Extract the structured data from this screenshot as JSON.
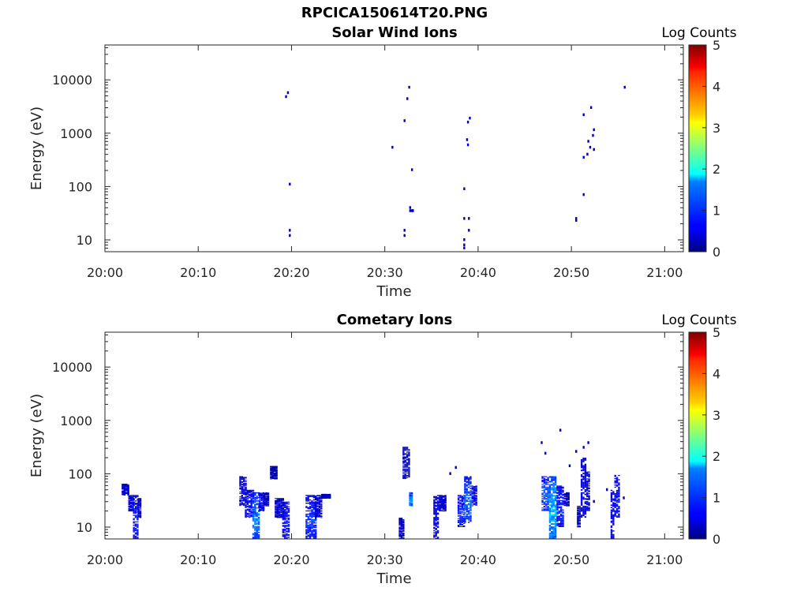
{
  "figure_title": "RPCICA150614T20.PNG",
  "chart_data": [
    {
      "type": "heatmap",
      "title": "Solar Wind Ions",
      "xlabel": "Time",
      "ylabel": "Energy (eV)",
      "yscale": "log",
      "xlim": [
        "20:00",
        "21:02"
      ],
      "ylim": [
        6,
        45000
      ],
      "xticks": [
        "20:00",
        "20:10",
        "20:20",
        "20:30",
        "20:40",
        "20:50",
        "21:00"
      ],
      "yticks": [
        "10",
        "100",
        "1000",
        "10000"
      ],
      "colorbar": {
        "label": "Log Counts",
        "min": 0,
        "max": 5,
        "ticks": [
          "0",
          "1",
          "2",
          "3",
          "4",
          "5"
        ],
        "colormap": "jet"
      },
      "points": [
        {
          "t": 19.4,
          "e": 4800,
          "v": 0.3
        },
        {
          "t": 19.6,
          "e": 5700,
          "v": 0.3
        },
        {
          "t": 19.8,
          "e": 110,
          "v": 0.3
        },
        {
          "t": 19.8,
          "e": 15,
          "v": 0.3
        },
        {
          "t": 19.8,
          "e": 12,
          "v": 0.3
        },
        {
          "t": 30.8,
          "e": 540,
          "v": 0.3
        },
        {
          "t": 32.1,
          "e": 1700,
          "v": 0.3
        },
        {
          "t": 32.1,
          "e": 15,
          "v": 0.3
        },
        {
          "t": 32.1,
          "e": 12,
          "v": 0.3
        },
        {
          "t": 32.4,
          "e": 4400,
          "v": 0.3
        },
        {
          "t": 32.6,
          "e": 7200,
          "v": 0.3
        },
        {
          "t": 32.7,
          "e": 40,
          "v": 0.4
        },
        {
          "t": 32.7,
          "e": 35,
          "v": 0.3
        },
        {
          "t": 32.9,
          "e": 35,
          "v": 0.3
        },
        {
          "t": 33.0,
          "e": 35,
          "v": 0.3
        },
        {
          "t": 32.9,
          "e": 205,
          "v": 0.3
        },
        {
          "t": 38.5,
          "e": 90,
          "v": 0.3
        },
        {
          "t": 38.5,
          "e": 25,
          "v": 0.3
        },
        {
          "t": 38.5,
          "e": 10,
          "v": 0.3
        },
        {
          "t": 38.5,
          "e": 8,
          "v": 0.3
        },
        {
          "t": 38.5,
          "e": 7,
          "v": 0.3
        },
        {
          "t": 38.8,
          "e": 750,
          "v": 0.3
        },
        {
          "t": 38.9,
          "e": 600,
          "v": 0.3
        },
        {
          "t": 38.9,
          "e": 1600,
          "v": 0.3
        },
        {
          "t": 39.1,
          "e": 1900,
          "v": 0.3
        },
        {
          "t": 39.0,
          "e": 25,
          "v": 0.3
        },
        {
          "t": 39.0,
          "e": 15,
          "v": 0.3
        },
        {
          "t": 50.5,
          "e": 25,
          "v": 0.3
        },
        {
          "t": 50.5,
          "e": 23,
          "v": 0.3
        },
        {
          "t": 51.3,
          "e": 2200,
          "v": 0.3
        },
        {
          "t": 51.3,
          "e": 70,
          "v": 0.3
        },
        {
          "t": 51.3,
          "e": 350,
          "v": 0.3
        },
        {
          "t": 51.7,
          "e": 400,
          "v": 0.3
        },
        {
          "t": 51.8,
          "e": 700,
          "v": 0.3
        },
        {
          "t": 52.0,
          "e": 540,
          "v": 0.3
        },
        {
          "t": 52.1,
          "e": 3000,
          "v": 0.3
        },
        {
          "t": 52.3,
          "e": 900,
          "v": 0.3
        },
        {
          "t": 52.4,
          "e": 1150,
          "v": 0.3
        },
        {
          "t": 52.4,
          "e": 490,
          "v": 0.3
        },
        {
          "t": 55.7,
          "e": 7200,
          "v": 0.3
        }
      ]
    },
    {
      "type": "heatmap",
      "title": "Cometary Ions",
      "xlabel": "Time",
      "ylabel": "Energy (eV)",
      "yscale": "log",
      "xlim": [
        "20:00",
        "21:02"
      ],
      "ylim": [
        6,
        45000
      ],
      "xticks": [
        "20:00",
        "20:10",
        "20:20",
        "20:30",
        "20:40",
        "20:50",
        "21:00"
      ],
      "yticks": [
        "10",
        "100",
        "1000",
        "10000"
      ],
      "colorbar": {
        "label": "Log Counts",
        "min": 0,
        "max": 5,
        "ticks": [
          "0",
          "1",
          "2",
          "3",
          "4",
          "5"
        ],
        "colormap": "jet"
      },
      "columns": [
        {
          "t0": 1.8,
          "t1": 2.5,
          "e_low": 40,
          "e_high": 65,
          "v_peak": 0.5
        },
        {
          "t0": 2.5,
          "t1": 3.0,
          "e_low": 20,
          "e_high": 40,
          "v_peak": 0.6
        },
        {
          "t0": 3.0,
          "t1": 3.5,
          "e_low": 6,
          "e_high": 40,
          "v_peak": 0.8
        },
        {
          "t0": 3.5,
          "t1": 3.8,
          "e_low": 15,
          "e_high": 35,
          "v_peak": 0.4
        },
        {
          "t0": 14.4,
          "t1": 15.0,
          "e_low": 25,
          "e_high": 90,
          "v_peak": 0.5
        },
        {
          "t0": 15.0,
          "t1": 15.8,
          "e_low": 15,
          "e_high": 50,
          "v_peak": 0.7
        },
        {
          "t0": 15.8,
          "t1": 16.5,
          "e_low": 6,
          "e_high": 45,
          "v_peak": 1.3
        },
        {
          "t0": 16.5,
          "t1": 17.0,
          "e_low": 20,
          "e_high": 45,
          "v_peak": 0.6
        },
        {
          "t0": 17.0,
          "t1": 17.5,
          "e_low": 25,
          "e_high": 45,
          "v_peak": 0.4
        },
        {
          "t0": 17.7,
          "t1": 18.3,
          "e_low": 80,
          "e_high": 140,
          "v_peak": 0.3
        },
        {
          "t0": 18.2,
          "t1": 19.0,
          "e_low": 15,
          "e_high": 35,
          "v_peak": 0.5
        },
        {
          "t0": 19.0,
          "t1": 19.6,
          "e_low": 6,
          "e_high": 30,
          "v_peak": 0.7
        },
        {
          "t0": 21.5,
          "t1": 22.5,
          "e_low": 6,
          "e_high": 40,
          "v_peak": 0.9
        },
        {
          "t0": 22.5,
          "t1": 23.2,
          "e_low": 15,
          "e_high": 40,
          "v_peak": 0.5
        },
        {
          "t0": 23.2,
          "t1": 24.0,
          "e_low": 35,
          "e_high": 42,
          "v_peak": 0.4
        },
        {
          "t0": 31.5,
          "t1": 32.0,
          "e_low": 6,
          "e_high": 15,
          "v_peak": 0.4
        },
        {
          "t0": 31.9,
          "t1": 32.6,
          "e_low": 80,
          "e_high": 320,
          "v_peak": 0.3
        },
        {
          "t0": 32.6,
          "t1": 33.0,
          "e_low": 25,
          "e_high": 45,
          "v_peak": 1.5
        },
        {
          "t0": 35.2,
          "t1": 35.8,
          "e_low": 6,
          "e_high": 40,
          "v_peak": 0.6
        },
        {
          "t0": 35.8,
          "t1": 36.6,
          "e_low": 20,
          "e_high": 40,
          "v_peak": 0.5
        },
        {
          "t0": 37.8,
          "t1": 38.5,
          "e_low": 10,
          "e_high": 40,
          "v_peak": 0.8
        },
        {
          "t0": 38.5,
          "t1": 39.3,
          "e_low": 12,
          "e_high": 90,
          "v_peak": 1.2
        },
        {
          "t0": 39.3,
          "t1": 39.8,
          "e_low": 25,
          "e_high": 60,
          "v_peak": 0.6
        },
        {
          "t0": 46.8,
          "t1": 47.6,
          "e_low": 20,
          "e_high": 90,
          "v_peak": 1.1
        },
        {
          "t0": 47.6,
          "t1": 48.4,
          "e_low": 6,
          "e_high": 90,
          "v_peak": 1.6
        },
        {
          "t0": 48.4,
          "t1": 49.2,
          "e_low": 10,
          "e_high": 60,
          "v_peak": 0.8
        },
        {
          "t0": 49.2,
          "t1": 49.8,
          "e_low": 25,
          "e_high": 45,
          "v_peak": 0.4
        },
        {
          "t0": 50.6,
          "t1": 51.0,
          "e_low": 10,
          "e_high": 25,
          "v_peak": 0.4
        },
        {
          "t0": 51.0,
          "t1": 51.6,
          "e_low": 15,
          "e_high": 200,
          "v_peak": 0.6
        },
        {
          "t0": 51.6,
          "t1": 52.0,
          "e_low": 20,
          "e_high": 110,
          "v_peak": 0.5
        },
        {
          "t0": 54.2,
          "t1": 54.6,
          "e_low": 6,
          "e_high": 50,
          "v_peak": 0.6
        },
        {
          "t0": 54.6,
          "t1": 55.2,
          "e_low": 15,
          "e_high": 95,
          "v_peak": 0.7
        }
      ],
      "points": [
        {
          "t": 46.8,
          "e": 380,
          "v": 0.3
        },
        {
          "t": 48.8,
          "e": 650,
          "v": 0.3
        },
        {
          "t": 50.5,
          "e": 260,
          "v": 0.3
        },
        {
          "t": 51.8,
          "e": 380,
          "v": 0.3
        },
        {
          "t": 47.2,
          "e": 240,
          "v": 0.3
        },
        {
          "t": 37.0,
          "e": 100,
          "v": 0.3
        },
        {
          "t": 37.6,
          "e": 130,
          "v": 0.3
        },
        {
          "t": 52.4,
          "e": 30,
          "v": 0.3
        },
        {
          "t": 49.8,
          "e": 140,
          "v": 0.3
        },
        {
          "t": 51.3,
          "e": 310,
          "v": 0.3
        },
        {
          "t": 53.8,
          "e": 50,
          "v": 0.3
        },
        {
          "t": 55.6,
          "e": 35,
          "v": 0.3
        }
      ]
    }
  ]
}
